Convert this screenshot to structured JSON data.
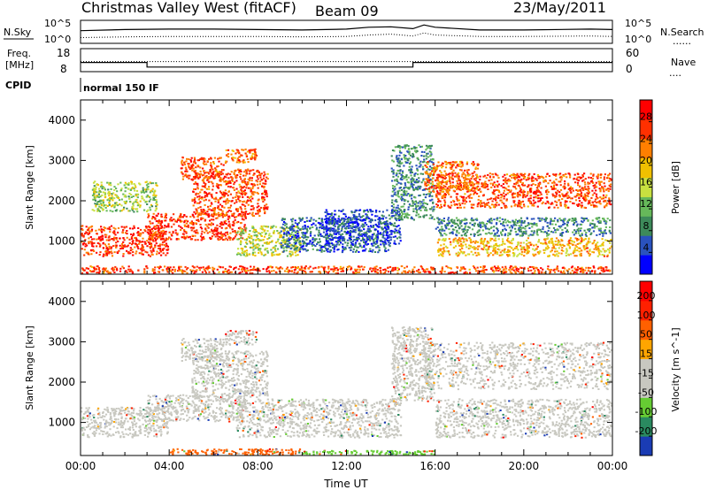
{
  "header": {
    "title": "Christmas Valley West (fitACF)",
    "beam": "Beam 09",
    "date": "23/May/2011"
  },
  "nsky_panel": {
    "left_label": "N.Sky",
    "left_ticks": [
      "10^5",
      "10^0"
    ],
    "right_ticks": [
      "10^5",
      "10^0"
    ],
    "right_label": "N.Search",
    "right_legend": "......"
  },
  "freq_panel": {
    "left_label": "Freq.",
    "left_unit": "[MHz]",
    "left_ticks": [
      "18",
      "8"
    ],
    "right_ticks": [
      "60",
      "0"
    ],
    "right_label": "Nave",
    "right_legend": "...."
  },
  "cpid": {
    "label": "CPID",
    "value": "normal 150 IF"
  },
  "chart_data": [
    {
      "type": "line",
      "panel": "sounding-parameters",
      "x_hours": [
        0,
        2,
        4,
        6,
        8,
        10,
        12,
        13,
        14,
        15,
        15.5,
        16,
        18,
        20,
        23,
        24
      ],
      "series": [
        {
          "name": "N.Sky",
          "values": [
            0.55,
            0.6,
            0.62,
            0.62,
            0.6,
            0.58,
            0.62,
            0.7,
            0.72,
            0.64,
            0.8,
            0.7,
            0.58,
            0.58,
            0.62,
            0.6
          ]
        },
        {
          "name": "N.Search",
          "values": [
            0.25,
            0.28,
            0.3,
            0.3,
            0.3,
            0.28,
            0.3,
            0.36,
            0.4,
            0.32,
            0.45,
            0.36,
            0.3,
            0.3,
            0.32,
            0.3
          ]
        }
      ],
      "freq_steps": [
        {
          "start": 0,
          "end": 3,
          "value": 12
        },
        {
          "start": 3,
          "end": 15,
          "value": 10
        },
        {
          "start": 15,
          "end": 24,
          "value": 12
        }
      ]
    },
    {
      "type": "heatmap",
      "panel": "power",
      "ylabel": "Slant Range [km]",
      "xlim": [
        0,
        24
      ],
      "ylim": [
        180,
        4500
      ],
      "yticks": [
        "1000",
        "2000",
        "3000",
        "4000"
      ],
      "colorbar_label": "Power [dB]",
      "colorbar_ticks": [
        "28",
        "24",
        "20",
        "16",
        "12",
        "8",
        "4"
      ],
      "colorbar_colors": [
        "#0000ff",
        "#2a52be",
        "#3d8a5a",
        "#66b85a",
        "#c8e040",
        "#f0c000",
        "#ff7f00",
        "#ff3000",
        "#ff0000"
      ],
      "regions": [
        {
          "t0": 0,
          "t1": 4,
          "r0": 600,
          "r1": 1400,
          "level": 0.9
        },
        {
          "t0": 3,
          "t1": 7.5,
          "r0": 1000,
          "r1": 1700,
          "level": 0.9
        },
        {
          "t0": 5,
          "t1": 8.5,
          "r0": 1600,
          "r1": 2800,
          "level": 0.85
        },
        {
          "t0": 4.5,
          "t1": 6.5,
          "r0": 2500,
          "r1": 3100,
          "level": 0.85
        },
        {
          "t0": 6.5,
          "t1": 8,
          "r0": 2900,
          "r1": 3300,
          "level": 0.8
        },
        {
          "t0": 0.5,
          "t1": 3.5,
          "r0": 1700,
          "r1": 2500,
          "level": 0.45
        },
        {
          "t0": 7,
          "t1": 10,
          "r0": 600,
          "r1": 1400,
          "level": 0.5
        },
        {
          "t0": 9,
          "t1": 14,
          "r0": 700,
          "r1": 1600,
          "level": 0.15
        },
        {
          "t0": 11,
          "t1": 14.5,
          "r0": 900,
          "r1": 1800,
          "level": 0.1
        },
        {
          "t0": 14,
          "t1": 16,
          "r0": 1500,
          "r1": 3400,
          "level": 0.25
        },
        {
          "t0": 16,
          "t1": 24,
          "r0": 1800,
          "r1": 2700,
          "level": 0.85
        },
        {
          "t0": 15.5,
          "t1": 18,
          "r0": 2200,
          "r1": 3000,
          "level": 0.8
        },
        {
          "t0": 16,
          "t1": 24,
          "r0": 600,
          "r1": 1100,
          "level": 0.65
        },
        {
          "t0": 16,
          "t1": 24,
          "r0": 1100,
          "r1": 1600,
          "level": 0.25
        },
        {
          "t0": 0,
          "t1": 24,
          "r0": 180,
          "r1": 400,
          "level": 0.85
        }
      ]
    },
    {
      "type": "heatmap",
      "panel": "velocity",
      "xlabel": "Time UT",
      "ylabel": "Slant Range [km]",
      "xlim": [
        0,
        24
      ],
      "ylim": [
        180,
        4500
      ],
      "xticks": [
        "00:00",
        "04:00",
        "08:00",
        "12:00",
        "16:00",
        "20:00",
        "00:00"
      ],
      "yticks": [
        "1000",
        "2000",
        "3000",
        "4000"
      ],
      "colorbar_label": "Velocity [m s^-1]",
      "colorbar_ticks": [
        "200",
        "100",
        "50",
        "15",
        "-15",
        "-50",
        "-100",
        "-200"
      ],
      "colorbar_colors": [
        "#1a3cb4",
        "#2a8a60",
        "#66cc33",
        "#c8c8c0",
        "#c8c8c0",
        "#ffa500",
        "#ff6000",
        "#ff2000",
        "#ff0000"
      ],
      "regions": [
        {
          "t0": 0,
          "t1": 4,
          "r0": 600,
          "r1": 1400,
          "level": 0.5
        },
        {
          "t0": 3,
          "t1": 7.5,
          "r0": 1000,
          "r1": 1700,
          "level": 0.5
        },
        {
          "t0": 5,
          "t1": 8.5,
          "r0": 1600,
          "r1": 2800,
          "level": 0.5
        },
        {
          "t0": 4.5,
          "t1": 6.5,
          "r0": 2500,
          "r1": 3100,
          "level": 0.5
        },
        {
          "t0": 6.5,
          "t1": 8,
          "r0": 2900,
          "r1": 3300,
          "level": 0.5
        },
        {
          "t0": 7,
          "t1": 14.5,
          "r0": 600,
          "r1": 1600,
          "level": 0.5
        },
        {
          "t0": 14,
          "t1": 16,
          "r0": 1500,
          "r1": 3400,
          "level": 0.55
        },
        {
          "t0": 15.5,
          "t1": 24,
          "r0": 1800,
          "r1": 3000,
          "level": 0.5
        },
        {
          "t0": 16,
          "t1": 24,
          "r0": 600,
          "r1": 1600,
          "level": 0.5
        },
        {
          "t0": 4,
          "t1": 10,
          "r0": 180,
          "r1": 360,
          "level": 0.72
        },
        {
          "t0": 10,
          "t1": 16,
          "r0": 180,
          "r1": 320,
          "level": 0.3
        }
      ]
    }
  ]
}
